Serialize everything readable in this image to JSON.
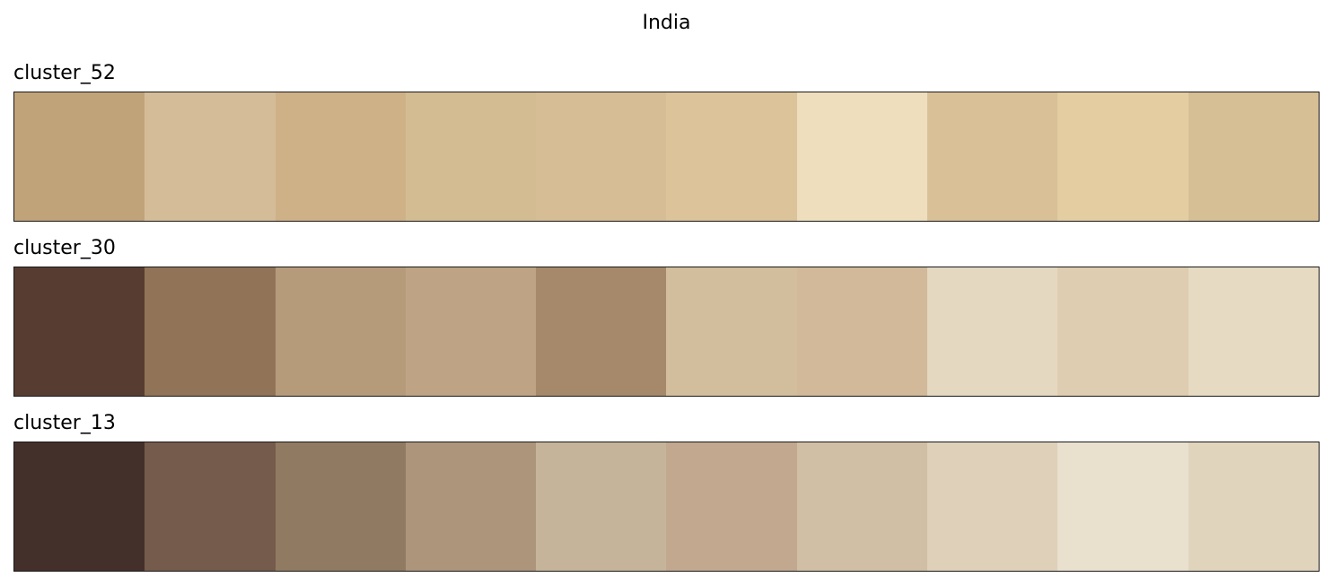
{
  "chart_data": {
    "type": "heatmap",
    "title": "India",
    "palettes": [
      {
        "name": "cluster_52",
        "colors": [
          "#c1a37a",
          "#d5bc98",
          "#cfb187",
          "#d3bc92",
          "#d6bd95",
          "#dcc39a",
          "#eedebd",
          "#d9c097",
          "#e5cda2",
          "#d6bf95"
        ]
      },
      {
        "name": "cluster_30",
        "colors": [
          "#573c31",
          "#917358",
          "#b69b7b",
          "#bea484",
          "#a6896b",
          "#d2bd9c",
          "#d1b99a",
          "#e5d8c1",
          "#decdb0",
          "#e6dac2"
        ]
      },
      {
        "name": "cluster_13",
        "colors": [
          "#44302a",
          "#755b4b",
          "#917a62",
          "#ac957b",
          "#c6b49a",
          "#c1a88e",
          "#d1bfa5",
          "#ded0b9",
          "#e9e0ce",
          "#e1d4bd"
        ]
      }
    ]
  }
}
